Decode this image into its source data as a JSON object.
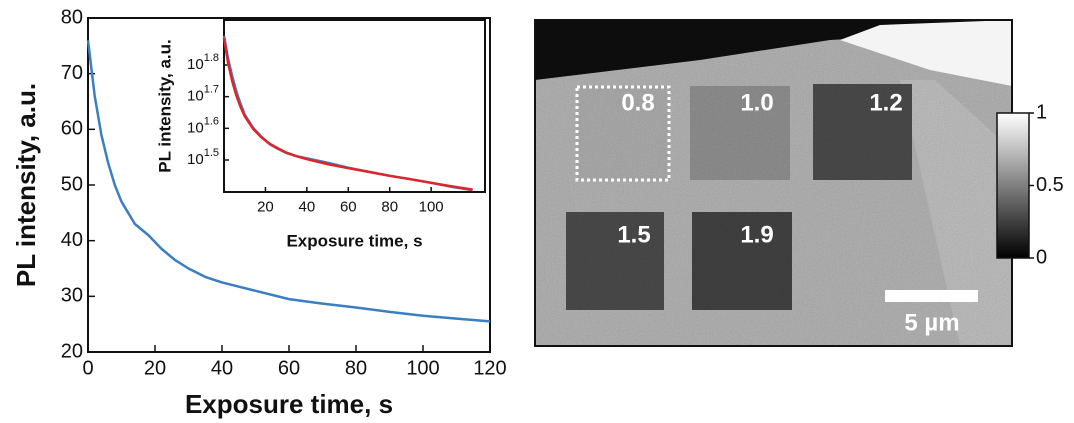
{
  "chart_data": [
    {
      "type": "line",
      "xlabel": "Exposure time, s",
      "ylabel": "PL intensity, a.u.",
      "x": [
        0,
        2,
        4,
        6,
        8,
        10,
        14,
        18,
        22,
        26,
        30,
        35,
        40,
        50,
        60,
        70,
        80,
        90,
        100,
        110,
        120
      ],
      "series": [
        {
          "color": "#3a7fc1",
          "values": [
            76,
            66,
            59,
            54,
            50,
            47,
            43,
            41,
            38.5,
            36.5,
            35,
            33.5,
            32.5,
            31,
            29.5,
            28.7,
            28,
            27.2,
            26.5,
            26,
            25.5
          ]
        }
      ],
      "xlim": [
        0,
        120
      ],
      "ylim": [
        20,
        80
      ],
      "xticks": [
        0,
        20,
        40,
        60,
        80,
        100,
        120
      ],
      "yticks": [
        20,
        30,
        40,
        50,
        60,
        70,
        80
      ]
    },
    {
      "type": "line",
      "xlabel": "Exposure time, s",
      "ylabel": "PL intensity, a.u.",
      "log_y": true,
      "x": [
        0,
        2,
        4,
        6,
        8,
        10,
        14,
        18,
        22,
        26,
        30,
        35,
        40,
        50,
        60,
        70,
        80,
        90,
        100,
        110,
        120
      ],
      "series": [
        {
          "color": "#3a7fc1",
          "values": [
            78,
            66,
            58,
            52,
            47.5,
            44,
            40,
            37.5,
            35.5,
            34.3,
            33.3,
            32.5,
            32,
            31,
            29.9,
            29,
            28.2,
            27.5,
            26.8,
            26,
            25.4
          ]
        },
        {
          "color": "#e0242a",
          "values": [
            77,
            64,
            56,
            50.5,
            46.5,
            43.5,
            39.7,
            37.3,
            35.6,
            34.4,
            33.4,
            32.5,
            31.8,
            30.7,
            29.8,
            29,
            28.2,
            27.5,
            26.8,
            26.1,
            25.5
          ]
        }
      ],
      "xlim": [
        0,
        126
      ],
      "ylim": [
        25.06,
        87.5
      ],
      "xticks": [
        20,
        40,
        60,
        80,
        100
      ],
      "yticks": [
        {
          "value": 31.6228,
          "label": "10^1.5"
        },
        {
          "value": 39.8107,
          "label": "10^1.6"
        },
        {
          "value": 50.1187,
          "label": "10^1.7"
        },
        {
          "value": 63.0957,
          "label": "10^1.8"
        }
      ]
    },
    {
      "type": "image",
      "annotations": [
        "0.8",
        "1.0",
        "1.2",
        "1.5",
        "1.9"
      ],
      "scale_bar": "5 µm",
      "colorbar_lim": [
        0,
        1
      ],
      "colorbar_ticks": [
        0,
        0.5,
        1
      ]
    }
  ]
}
